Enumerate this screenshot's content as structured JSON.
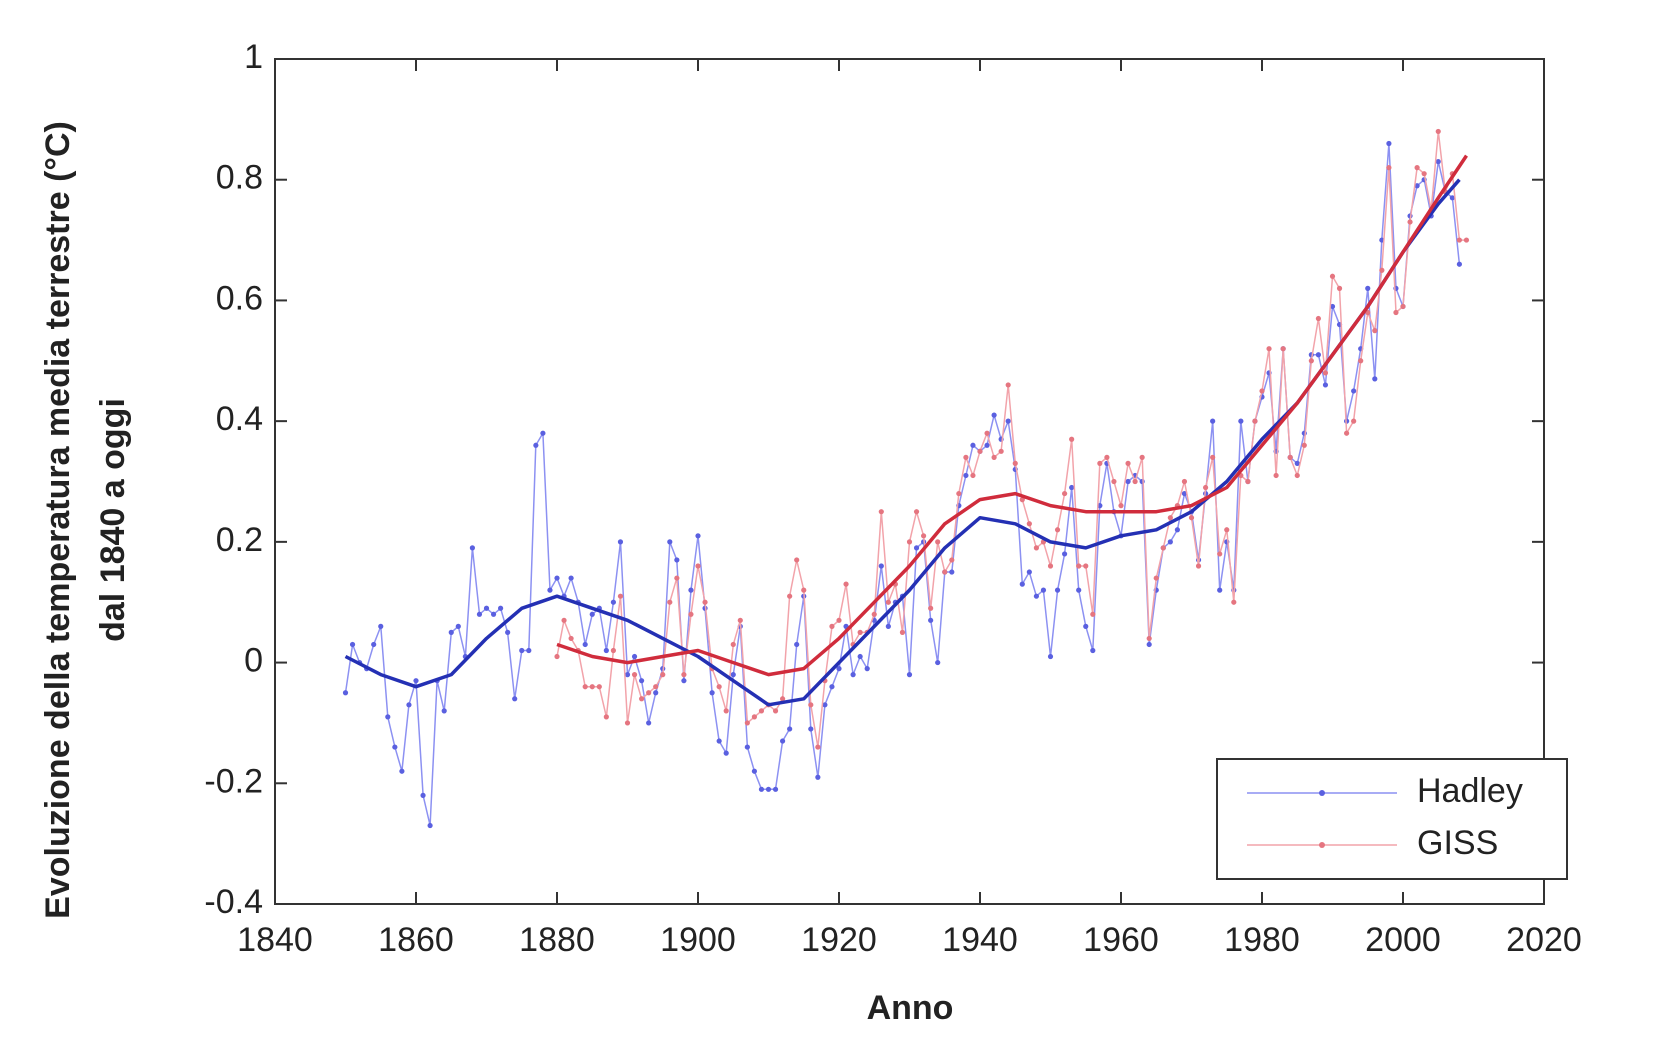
{
  "chart_data": {
    "type": "line",
    "x_label": "Anno",
    "y_label": [
      "Evoluzione della temperatura media terrestre (°C)",
      "dal 1840 a oggi"
    ],
    "x": [
      1850,
      1851,
      1852,
      1853,
      1854,
      1855,
      1856,
      1857,
      1858,
      1859,
      1860,
      1861,
      1862,
      1863,
      1864,
      1865,
      1866,
      1867,
      1868,
      1869,
      1870,
      1871,
      1872,
      1873,
      1874,
      1875,
      1876,
      1877,
      1878,
      1879,
      1880,
      1881,
      1882,
      1883,
      1884,
      1885,
      1886,
      1887,
      1888,
      1889,
      1890,
      1891,
      1892,
      1893,
      1894,
      1895,
      1896,
      1897,
      1898,
      1899,
      1900,
      1901,
      1902,
      1903,
      1904,
      1905,
      1906,
      1907,
      1908,
      1909,
      1910,
      1911,
      1912,
      1913,
      1914,
      1915,
      1916,
      1917,
      1918,
      1919,
      1920,
      1921,
      1922,
      1923,
      1924,
      1925,
      1926,
      1927,
      1928,
      1929,
      1930,
      1931,
      1932,
      1933,
      1934,
      1935,
      1936,
      1937,
      1938,
      1939,
      1940,
      1941,
      1942,
      1943,
      1944,
      1945,
      1946,
      1947,
      1948,
      1949,
      1950,
      1951,
      1952,
      1953,
      1954,
      1955,
      1956,
      1957,
      1958,
      1959,
      1960,
      1961,
      1962,
      1963,
      1964,
      1965,
      1966,
      1967,
      1968,
      1969,
      1970,
      1971,
      1972,
      1973,
      1974,
      1975,
      1976,
      1977,
      1978,
      1979,
      1980,
      1981,
      1982,
      1983,
      1984,
      1985,
      1986,
      1987,
      1988,
      1989,
      1990,
      1991,
      1992,
      1993,
      1994,
      1995,
      1996,
      1997,
      1998,
      1999,
      2000,
      2001,
      2002,
      2003,
      2004,
      2005,
      2006,
      2007,
      2008,
      2009
    ],
    "series": [
      {
        "name": "Hadley",
        "color": "#8c91f2",
        "marker_color": "#5a60e0",
        "smooth_color": "#2430b4",
        "values": [
          -0.05,
          0.03,
          0.0,
          -0.01,
          0.03,
          0.06,
          -0.09,
          -0.14,
          -0.18,
          -0.07,
          -0.03,
          -0.22,
          -0.27,
          -0.03,
          -0.08,
          0.05,
          0.06,
          0.01,
          0.19,
          0.08,
          0.09,
          0.08,
          0.09,
          0.05,
          -0.06,
          0.02,
          0.02,
          0.36,
          0.38,
          0.12,
          0.14,
          0.11,
          0.14,
          0.1,
          0.03,
          0.08,
          0.09,
          0.02,
          0.1,
          0.2,
          -0.02,
          0.01,
          -0.03,
          -0.1,
          -0.05,
          -0.01,
          0.2,
          0.17,
          -0.03,
          0.12,
          0.21,
          0.09,
          -0.05,
          -0.13,
          -0.15,
          -0.02,
          0.06,
          -0.14,
          -0.18,
          -0.21,
          -0.21,
          -0.21,
          -0.13,
          -0.11,
          0.03,
          0.11,
          -0.11,
          -0.19,
          -0.07,
          -0.04,
          -0.01,
          0.06,
          -0.02,
          0.01,
          -0.01,
          0.07,
          0.16,
          0.06,
          0.1,
          0.11,
          -0.02,
          0.19,
          0.2,
          0.07,
          0.0,
          0.15,
          0.15,
          0.26,
          0.31,
          0.36,
          0.35,
          0.36,
          0.41,
          0.37,
          0.4,
          0.32,
          0.13,
          0.15,
          0.11,
          0.12,
          0.01,
          0.12,
          0.18,
          0.29,
          0.12,
          0.06,
          0.02,
          0.26,
          0.33,
          0.25,
          0.21,
          0.3,
          0.31,
          0.3,
          0.03,
          0.12,
          0.19,
          0.2,
          0.22,
          0.28,
          0.25,
          0.17,
          0.28,
          0.4,
          0.12,
          0.2,
          0.12,
          0.4,
          0.3,
          0.4,
          0.44,
          0.48,
          0.35,
          0.52,
          0.34,
          0.33,
          0.38,
          0.51,
          0.51,
          0.46,
          0.59,
          0.56,
          0.4,
          0.45,
          0.52,
          0.62,
          0.47,
          0.7,
          0.86,
          0.62,
          0.59,
          0.74,
          0.79,
          0.8,
          0.74,
          0.83,
          0.78,
          0.77,
          0.66,
          null
        ],
        "smooth_x": [
          1850,
          1855,
          1860,
          1865,
          1870,
          1875,
          1880,
          1885,
          1890,
          1895,
          1900,
          1905,
          1910,
          1915,
          1920,
          1925,
          1930,
          1935,
          1940,
          1945,
          1950,
          1955,
          1960,
          1965,
          1970,
          1975,
          1980,
          1985,
          1990,
          1995,
          2000,
          2005,
          2008
        ],
        "smooth_values": [
          0.01,
          -0.02,
          -0.04,
          -0.02,
          0.04,
          0.09,
          0.11,
          0.09,
          0.07,
          0.04,
          0.01,
          -0.03,
          -0.07,
          -0.06,
          0.0,
          0.06,
          0.12,
          0.19,
          0.24,
          0.23,
          0.2,
          0.19,
          0.21,
          0.22,
          0.25,
          0.3,
          0.37,
          0.43,
          0.51,
          0.59,
          0.68,
          0.76,
          0.8
        ]
      },
      {
        "name": "GISS",
        "color": "#f2a3aa",
        "marker_color": "#e57580",
        "smooth_color": "#d02c3c",
        "values": [
          null,
          null,
          null,
          null,
          null,
          null,
          null,
          null,
          null,
          null,
          null,
          null,
          null,
          null,
          null,
          null,
          null,
          null,
          null,
          null,
          null,
          null,
          null,
          null,
          null,
          null,
          null,
          null,
          null,
          null,
          0.01,
          0.07,
          0.04,
          0.02,
          -0.04,
          -0.04,
          -0.04,
          -0.09,
          0.02,
          0.11,
          -0.1,
          -0.02,
          -0.06,
          -0.05,
          -0.04,
          -0.02,
          0.1,
          0.14,
          -0.02,
          0.08,
          0.16,
          0.1,
          -0.01,
          -0.04,
          -0.08,
          0.03,
          0.07,
          -0.1,
          -0.09,
          -0.08,
          -0.07,
          -0.08,
          -0.06,
          0.11,
          0.17,
          0.12,
          -0.07,
          -0.14,
          -0.03,
          0.06,
          0.07,
          0.13,
          0.03,
          0.05,
          0.05,
          0.08,
          0.25,
          0.1,
          0.13,
          0.05,
          0.2,
          0.25,
          0.21,
          0.09,
          0.2,
          0.15,
          0.17,
          0.28,
          0.34,
          0.31,
          0.35,
          0.38,
          0.34,
          0.35,
          0.46,
          0.33,
          0.27,
          0.23,
          0.19,
          0.2,
          0.16,
          0.22,
          0.28,
          0.37,
          0.16,
          0.16,
          0.08,
          0.33,
          0.34,
          0.3,
          0.26,
          0.33,
          0.3,
          0.34,
          0.04,
          0.14,
          0.19,
          0.24,
          0.26,
          0.3,
          0.24,
          0.16,
          0.29,
          0.34,
          0.18,
          0.22,
          0.1,
          0.31,
          0.3,
          0.4,
          0.45,
          0.52,
          0.31,
          0.52,
          0.34,
          0.31,
          0.36,
          0.5,
          0.57,
          0.48,
          0.64,
          0.62,
          0.38,
          0.4,
          0.5,
          0.58,
          0.55,
          0.65,
          0.82,
          0.58,
          0.59,
          0.73,
          0.82,
          0.81,
          0.75,
          0.88,
          0.78,
          0.81,
          0.7,
          0.7
        ],
        "smooth_x": [
          1880,
          1885,
          1890,
          1895,
          1900,
          1905,
          1910,
          1915,
          1920,
          1925,
          1930,
          1935,
          1940,
          1945,
          1950,
          1955,
          1960,
          1965,
          1970,
          1975,
          1980,
          1985,
          1990,
          1995,
          2000,
          2005,
          2009
        ],
        "smooth_values": [
          0.03,
          0.01,
          0.0,
          0.01,
          0.02,
          0.0,
          -0.02,
          -0.01,
          0.04,
          0.1,
          0.16,
          0.23,
          0.27,
          0.28,
          0.26,
          0.25,
          0.25,
          0.25,
          0.26,
          0.29,
          0.36,
          0.43,
          0.51,
          0.59,
          0.68,
          0.77,
          0.84
        ]
      }
    ],
    "xlim": [
      1840,
      2020
    ],
    "xticks": [
      1840,
      1860,
      1880,
      1900,
      1920,
      1940,
      1960,
      1980,
      2000,
      2020
    ],
    "ylim": [
      -0.4,
      1
    ],
    "yticks": [
      -0.4,
      -0.2,
      0,
      0.2,
      0.4,
      0.6,
      0.8,
      1
    ],
    "grid": false,
    "legend": "lower right"
  }
}
